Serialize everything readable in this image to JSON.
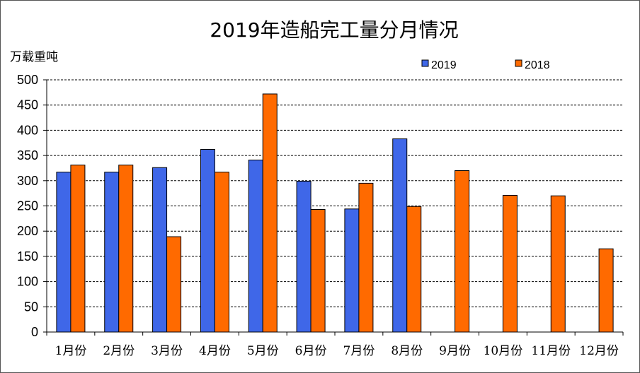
{
  "chart_data": {
    "type": "bar",
    "title": "2019年造船完工量分月情况",
    "ylabel": "万载重吨",
    "xlabel": "",
    "categories": [
      "1月份",
      "2月份",
      "3月份",
      "4月份",
      "5月份",
      "6月份",
      "7月份",
      "8月份",
      "9月份",
      "10月份",
      "11月份",
      "12月份"
    ],
    "series": [
      {
        "name": "2019",
        "color": "#3f67e8",
        "values": [
          317,
          317,
          326,
          362,
          341,
          299,
          244,
          383,
          null,
          null,
          null,
          null
        ]
      },
      {
        "name": "2018",
        "color": "#ff6a00",
        "values": [
          331,
          331,
          189,
          317,
          472,
          243,
          295,
          249,
          320,
          271,
          270,
          165
        ]
      }
    ],
    "ylim": [
      0,
      500
    ],
    "yticks": [
      0,
      50,
      100,
      150,
      200,
      250,
      300,
      350,
      400,
      450,
      500
    ],
    "grid": true,
    "legend_position": "top-right"
  }
}
